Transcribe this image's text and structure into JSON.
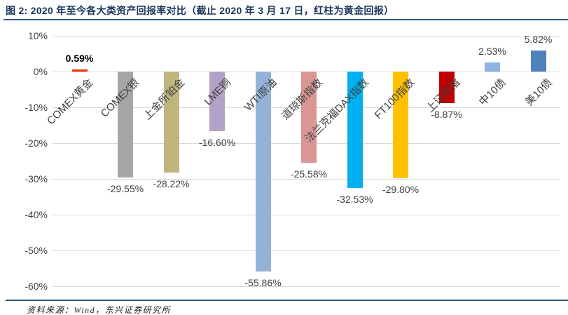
{
  "header": {
    "title": "图 2: 2020 年至今各大类资产回报率对比（截止 2020 年 3 月 17 日，红柱为黄金回报）"
  },
  "footer": {
    "source": "资料来源：Wind，东兴证券研究所"
  },
  "chart_data": {
    "type": "bar",
    "title": "2020 年至今各大类资产回报率对比（截止 2020 年 3 月 17 日，红柱为黄金回报）",
    "categories": [
      "COMEX黄金",
      "COMEX银",
      "上金所铂金",
      "LME铜",
      "WTI原油",
      "道琼斯指数",
      "法兰克福DAX指数",
      "FT100指数",
      "上证综指",
      "中10债",
      "美10债"
    ],
    "values": [
      0.59,
      -29.55,
      -28.22,
      -16.6,
      -55.86,
      -25.58,
      -32.53,
      -29.8,
      -8.87,
      2.53,
      5.82
    ],
    "value_labels": [
      "0.59%",
      "-29.55%",
      "-28.22%",
      "-16.60%",
      "-55.86%",
      "-25.58%",
      "-32.53%",
      "-29.80%",
      "-8.87%",
      "2.53%",
      "5.82%"
    ],
    "bar_colors": [
      "#ff3300",
      "#a6a6a6",
      "#bfb57f",
      "#b3a2c7",
      "#95b3d7",
      "#d99694",
      "#00b0f0",
      "#ffc000",
      "#c00000",
      "#8eb4e3",
      "#4f81bd"
    ],
    "highlighted_category": "COMEX黄金",
    "highlight_color": "#ff3300",
    "bold_value_label_index": 0,
    "y_ticks": [
      "10%",
      "0%",
      "-10%",
      "-20%",
      "-30%",
      "-40%",
      "-50%",
      "-60%"
    ],
    "ylim": [
      -60,
      10
    ],
    "ylabel": "",
    "xlabel": "",
    "grid": "horizontal",
    "gridline_color": "#d9d9d9",
    "legend": "none"
  }
}
